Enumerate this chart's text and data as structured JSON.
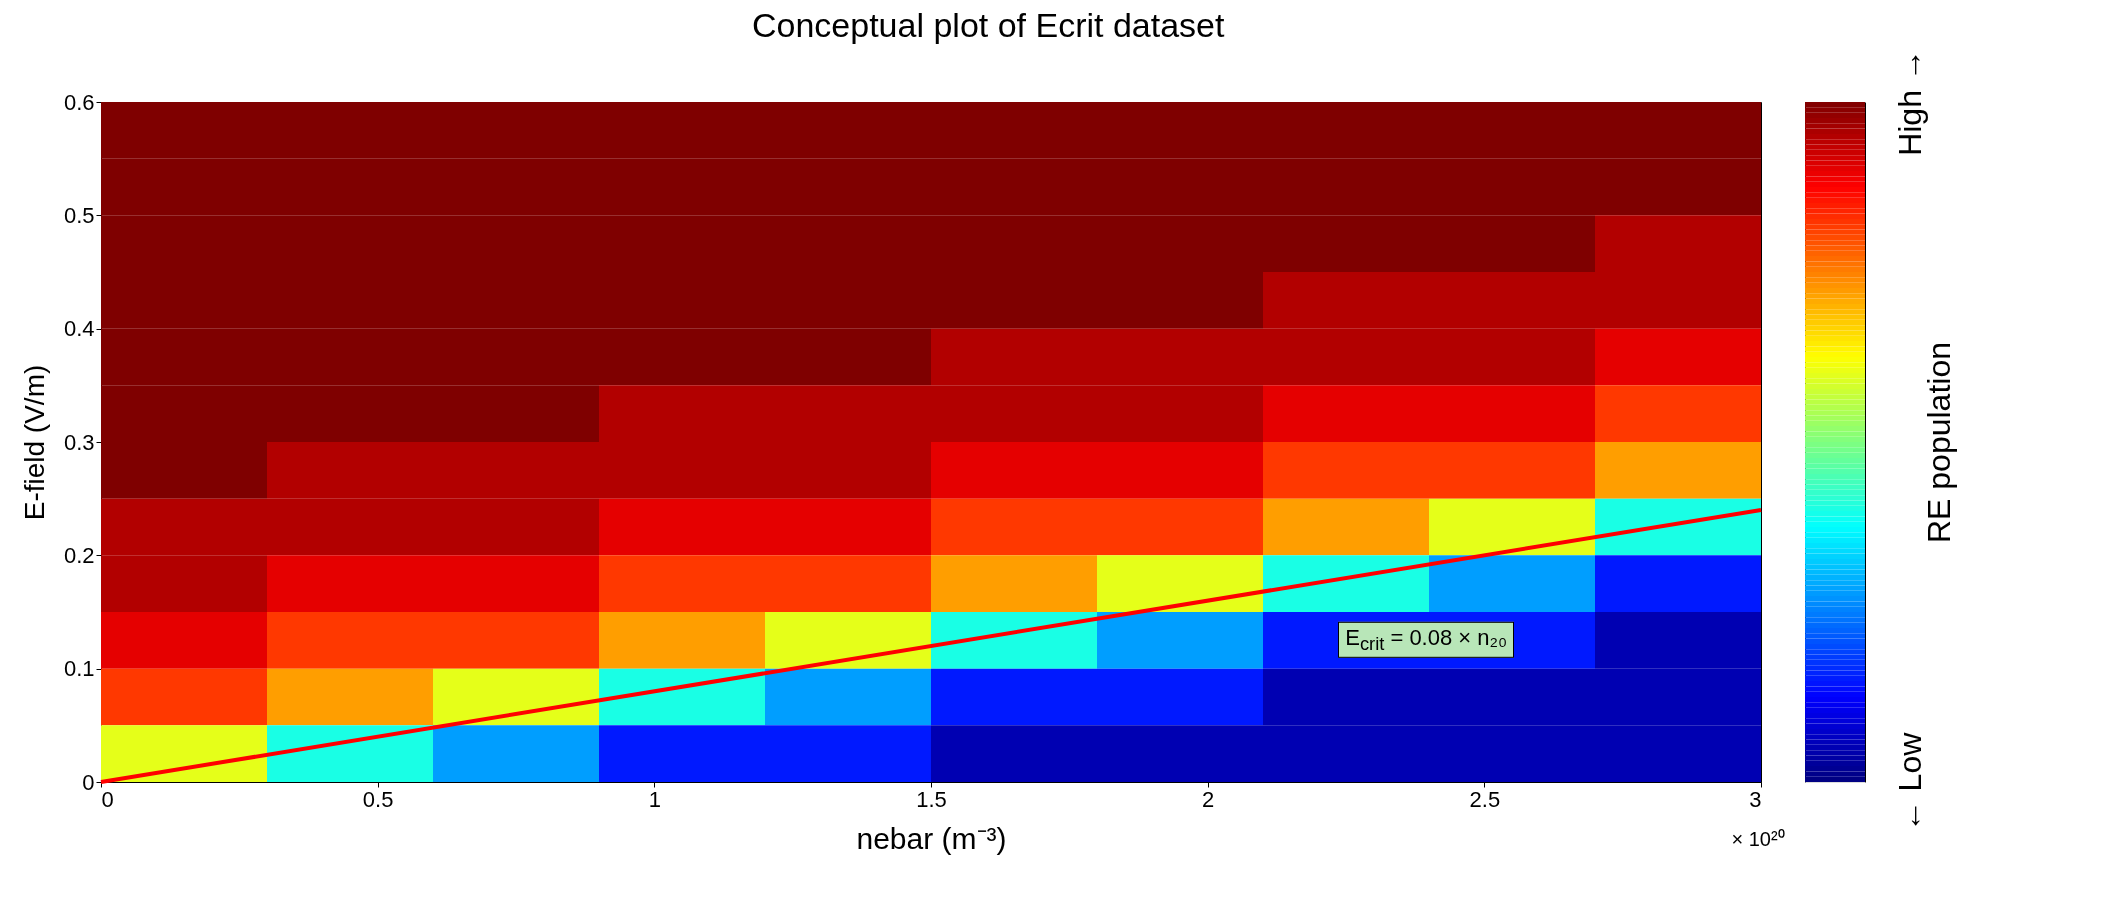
{
  "chart_data": {
    "type": "heatmap",
    "title": "Conceptual plot of Ecrit dataset",
    "xlabel": "nebar (m⁻³)",
    "ylabel": "E-field (V/m)",
    "clabel": "RE population",
    "x": [
      0.15,
      0.45,
      0.75,
      1.05,
      1.35,
      1.65,
      1.95,
      2.25,
      2.55,
      2.85
    ],
    "y": [
      0.575,
      0.525,
      0.475,
      0.425,
      0.375,
      0.325,
      0.275,
      0.225,
      0.175,
      0.125,
      0.075,
      0.025
    ],
    "cells": [
      [
        1,
        1,
        1,
        1,
        1,
        1,
        1,
        1,
        1,
        1
      ],
      [
        1,
        1,
        1,
        1,
        1,
        1,
        1,
        1,
        1,
        1
      ],
      [
        1,
        1,
        1,
        1,
        1,
        1,
        1,
        1,
        1,
        0.95
      ],
      [
        1,
        1,
        1,
        1,
        1,
        1,
        1,
        0.95,
        0.95,
        0.95
      ],
      [
        1,
        1,
        1,
        1,
        1,
        0.95,
        0.95,
        0.95,
        0.95,
        0.9
      ],
      [
        1,
        1,
        1,
        0.95,
        0.95,
        0.95,
        0.95,
        0.9,
        0.9,
        0.82
      ],
      [
        1,
        0.95,
        0.95,
        0.95,
        0.95,
        0.9,
        0.9,
        0.82,
        0.82,
        0.72
      ],
      [
        0.95,
        0.95,
        0.95,
        0.9,
        0.9,
        0.82,
        0.82,
        0.72,
        0.6,
        0.4
      ],
      [
        0.95,
        0.9,
        0.9,
        0.82,
        0.82,
        0.72,
        0.6,
        0.4,
        0.28,
        0.15
      ],
      [
        0.9,
        0.82,
        0.82,
        0.72,
        0.6,
        0.4,
        0.28,
        0.15,
        0.15,
        0.05
      ],
      [
        0.82,
        0.72,
        0.6,
        0.4,
        0.28,
        0.15,
        0.15,
        0.05,
        0.05,
        0.05
      ],
      [
        0.6,
        0.4,
        0.28,
        0.15,
        0.15,
        0.05,
        0.05,
        0.05,
        0.05,
        0.05
      ]
    ],
    "colors": [
      "#00007f",
      "#0000ff",
      "#007fff",
      "#00ffff",
      "#7fff7f",
      "#ffff00",
      "#ff7f00",
      "#ff0000",
      "#7f0000"
    ],
    "clim": [
      0,
      1
    ],
    "cticks": [
      {
        "value": 0,
        "label": "← Low"
      },
      {
        "value": 1,
        "label": "High →"
      }
    ],
    "series": [
      {
        "type": "line",
        "color": "#ff0000",
        "x": [
          0,
          3
        ],
        "values": [
          0,
          0.24
        ]
      }
    ],
    "xlim": [
      0,
      3
    ],
    "xticks": [
      0,
      0.5,
      1,
      1.5,
      2,
      2.5,
      3
    ],
    "ylim": [
      0,
      0.6
    ],
    "yticks": [
      0,
      0.1,
      0.2,
      0.3,
      0.4,
      0.5,
      0.6
    ],
    "annotations": [
      "E$_{crit}$ = 0.08 × n₂₀",
      "× 10²⁰"
    ]
  }
}
